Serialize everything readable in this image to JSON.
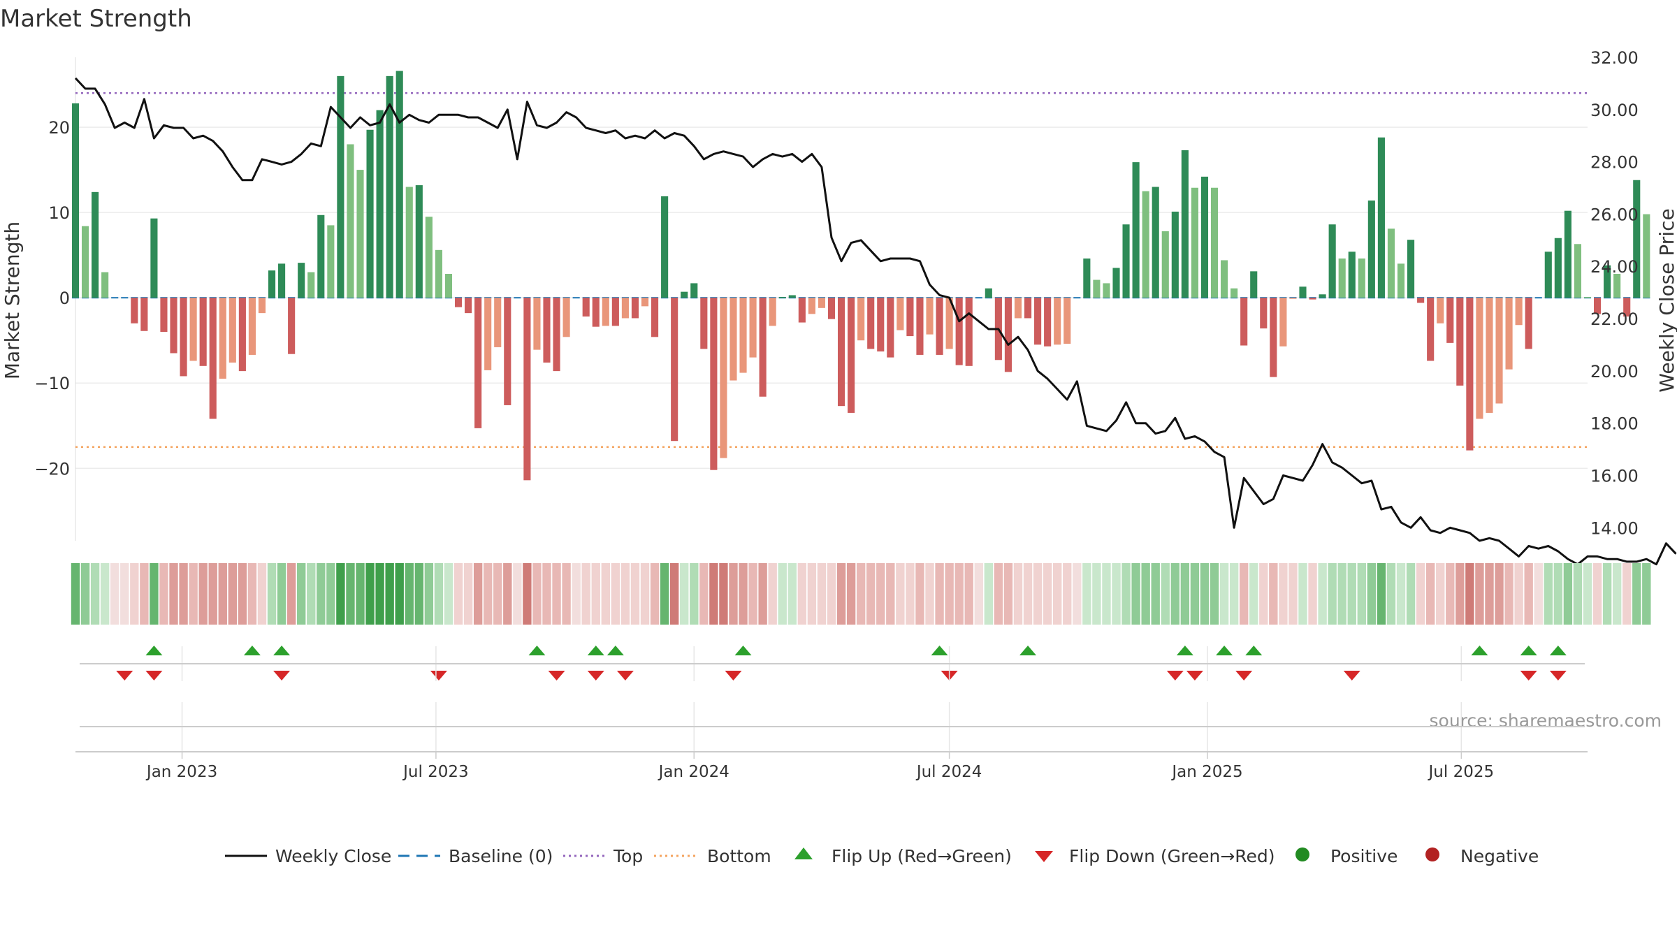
{
  "chart_data": {
    "type": "bar",
    "title": "Market Strength",
    "source": "source: sharemaestro.com",
    "ylabel": "Market Strength",
    "y2label": "Weekly Close Price",
    "ylim": [
      -28.5,
      28.2
    ],
    "y2lim": [
      13.5,
      32.0
    ],
    "yticks": [
      20,
      10,
      0,
      -10,
      -20
    ],
    "ytick_labels": [
      "20",
      "10",
      "0",
      "−10",
      "−20"
    ],
    "y2ticks": [
      32,
      30,
      28,
      26,
      24,
      22,
      20,
      18,
      16,
      14
    ],
    "y2tick_labels": [
      "32.00",
      "30.00",
      "28.00",
      "26.00",
      "24.00",
      "22.00",
      "20.00",
      "18.00",
      "16.00",
      "14.00"
    ],
    "xlim": [
      "2022-10-17",
      "2025-09-29"
    ],
    "xticks": [
      "2023-01-01",
      "2023-07-01",
      "2024-01-01",
      "2024-07-01",
      "2025-01-01",
      "2025-07-01"
    ],
    "xtick_labels": [
      "Jan 2023",
      "Jul 2023",
      "Jan 2024",
      "Jul 2024",
      "Jan 2025",
      "Jul 2025"
    ],
    "grid": true,
    "legend_position": "bottom",
    "reference_lines": {
      "baseline": 0,
      "top": 24.0,
      "bottom": -17.5
    },
    "colors": {
      "strong_positive": "#2e8b57",
      "weak_positive": "#7fbf7f",
      "strong_negative": "#cd5c5c",
      "weak_negative": "#e9967a",
      "price_line": "#111111",
      "top_line": "#9467bd",
      "bottom_line": "#f4a460",
      "baseline": "#1f77b4",
      "flip_up": "#2ca02c",
      "flip_down": "#d62728",
      "positive_marker": "#228b22",
      "negative_marker": "#b22222"
    },
    "legend": [
      {
        "label": "Weekly Close",
        "kind": "line"
      },
      {
        "label": "Baseline (0)",
        "kind": "dash"
      },
      {
        "label": "Top",
        "kind": "dot-purple"
      },
      {
        "label": "Bottom",
        "kind": "dot-orange"
      },
      {
        "label": "Flip Up (Red→Green)",
        "kind": "tri-up"
      },
      {
        "label": "Flip Down (Green→Red)",
        "kind": "tri-down"
      },
      {
        "label": "Positive",
        "kind": "dot-green"
      },
      {
        "label": "Negative",
        "kind": "dot-red"
      }
    ],
    "start_date": "2022-10-17",
    "bar_values": [
      22.8,
      8.4,
      12.4,
      3.0,
      0,
      0,
      -3.0,
      -3.9,
      9.3,
      -4.0,
      -6.5,
      -9.2,
      -7.4,
      -8.0,
      -14.2,
      -9.5,
      -7.6,
      -8.6,
      -6.7,
      -1.8,
      3.2,
      4.0,
      -6.6,
      4.1,
      3.0,
      9.7,
      8.5,
      26.0,
      18.0,
      15.0,
      19.7,
      22.0,
      26.0,
      26.6,
      13.0,
      13.2,
      9.5,
      5.6,
      2.8,
      -1.1,
      -1.8,
      -15.3,
      -8.5,
      -5.8,
      -12.6,
      0,
      -21.4,
      -6.1,
      -7.6,
      -8.6,
      -4.6,
      0,
      -2.2,
      -3.4,
      -3.3,
      -3.3,
      -2.4,
      -2.4,
      -1.0,
      -4.6,
      11.9,
      -16.8,
      0.7,
      1.7,
      -6.0,
      -20.2,
      -18.8,
      -9.7,
      -8.8,
      -7.0,
      -11.6,
      -3.3,
      0.1,
      0.3,
      -2.9,
      -1.9,
      -1.2,
      -2.5,
      -12.7,
      -13.5,
      -5.0,
      -6.0,
      -6.3,
      -7.0,
      -3.8,
      -4.5,
      -6.7,
      -4.3,
      -6.7,
      -6.0,
      -7.9,
      -8.0,
      0,
      1.1,
      -7.3,
      -8.7,
      -2.4,
      -2.4,
      -5.5,
      -5.7,
      -5.5,
      -5.4,
      0,
      4.6,
      2.1,
      1.7,
      3.5,
      8.6,
      15.9,
      12.5,
      13.0,
      7.8,
      10.1,
      17.3,
      12.9,
      14.2,
      12.9,
      4.4,
      1.1,
      -5.6,
      3.1,
      -3.6,
      -9.3,
      -5.7,
      -0.1,
      1.3,
      -0.2,
      0.4,
      8.6,
      4.6,
      5.4,
      4.6,
      11.4,
      18.8,
      8.1,
      4.0,
      6.8,
      -0.6,
      -7.4,
      -3.0,
      -5.3,
      -10.3,
      -17.9,
      -14.2,
      -13.5,
      -12.4,
      -8.4,
      -3.2,
      -6.0,
      0,
      5.4,
      7.0,
      10.2,
      6.3,
      0.1,
      -1.9,
      3.8,
      2.8,
      -2.2,
      13.8,
      9.8
    ],
    "close_values": [
      31.2,
      30.8,
      30.8,
      30.2,
      29.3,
      29.5,
      29.3,
      30.4,
      28.9,
      29.4,
      29.3,
      29.3,
      28.9,
      29.0,
      28.8,
      28.4,
      27.8,
      27.3,
      27.3,
      28.1,
      28.0,
      27.9,
      28.0,
      28.3,
      28.7,
      28.6,
      30.1,
      29.7,
      29.3,
      29.7,
      29.4,
      29.5,
      30.2,
      29.5,
      29.8,
      29.6,
      29.5,
      29.8,
      29.8,
      29.8,
      29.7,
      29.7,
      29.5,
      29.3,
      30.0,
      28.1,
      30.3,
      29.4,
      29.3,
      29.5,
      29.9,
      29.7,
      29.3,
      29.2,
      29.1,
      29.2,
      28.9,
      29.0,
      28.9,
      29.2,
      28.9,
      29.1,
      29.0,
      28.6,
      28.1,
      28.3,
      28.4,
      28.3,
      28.2,
      27.8,
      28.1,
      28.3,
      28.2,
      28.3,
      28.0,
      28.3,
      27.8,
      25.1,
      24.2,
      24.9,
      25.0,
      24.6,
      24.2,
      24.3,
      24.3,
      24.3,
      24.2,
      23.3,
      22.9,
      22.8,
      21.9,
      22.2,
      21.9,
      21.6,
      21.6,
      21.0,
      21.3,
      20.8,
      20.0,
      19.7,
      19.3,
      18.9,
      19.6,
      17.9,
      17.8,
      17.7,
      18.1,
      18.8,
      18.0,
      18.0,
      17.6,
      17.7,
      18.2,
      17.4,
      17.5,
      17.3,
      16.9,
      16.7,
      14.0,
      15.9,
      15.4,
      14.9,
      15.1,
      16.0,
      15.9,
      15.8,
      16.4,
      17.2,
      16.5,
      16.3,
      16.0,
      15.7,
      15.8,
      14.7,
      14.8,
      14.2,
      14.0,
      14.4,
      13.9,
      13.8,
      14.0,
      13.9,
      13.8,
      13.5,
      13.6,
      13.5,
      13.2,
      12.9,
      13.3,
      13.2,
      13.3,
      13.1,
      12.8,
      12.6,
      12.9,
      12.9,
      12.8,
      12.8,
      12.7,
      12.7,
      12.8,
      12.6,
      13.4,
      13.0
    ],
    "heat_shades": [
      4,
      3,
      2,
      1,
      1,
      1,
      1,
      2,
      4,
      2,
      3,
      3,
      2,
      3,
      3,
      3,
      3,
      3,
      2,
      1,
      2,
      3,
      3,
      3,
      2,
      3,
      3,
      5,
      4,
      4,
      5,
      5,
      5,
      5,
      4,
      4,
      3,
      2,
      1,
      1,
      1,
      3,
      2,
      2,
      3,
      1,
      4,
      2,
      2,
      2,
      2,
      1,
      1,
      1,
      1,
      1,
      1,
      1,
      1,
      2,
      4,
      4,
      1,
      2,
      2,
      4,
      4,
      3,
      3,
      2,
      3,
      1,
      1,
      1,
      1,
      1,
      1,
      1,
      3,
      3,
      2,
      2,
      2,
      2,
      1,
      1,
      2,
      1,
      2,
      2,
      2,
      2,
      1,
      1,
      2,
      2,
      1,
      1,
      1,
      1,
      1,
      1,
      1,
      1,
      1,
      1,
      1,
      2,
      3,
      3,
      3,
      2,
      3,
      3,
      3,
      3,
      3,
      1,
      1,
      2,
      1,
      1,
      2,
      1,
      1,
      1,
      1,
      1,
      2,
      2,
      2,
      2,
      3,
      4,
      2,
      1,
      2,
      1,
      2,
      1,
      2,
      3,
      4,
      3,
      3,
      3,
      2,
      1,
      2,
      1,
      2,
      2,
      3,
      2,
      1,
      1,
      2,
      1,
      1,
      3,
      3
    ],
    "flip_up_dates": [
      "2022-12-12",
      "2023-02-20",
      "2023-03-13",
      "2023-09-11",
      "2023-10-23",
      "2023-11-06",
      "2024-02-05",
      "2024-06-24",
      "2024-08-26",
      "2024-12-16",
      "2025-01-13",
      "2025-02-03",
      "2025-07-14",
      "2025-08-18",
      "2025-09-08"
    ],
    "flip_down_dates": [
      "2022-11-21",
      "2022-12-12",
      "2023-03-13",
      "2023-07-03",
      "2023-09-25",
      "2023-10-23",
      "2023-11-13",
      "2024-01-29",
      "2024-07-01",
      "2024-12-09",
      "2024-12-23",
      "2025-01-27",
      "2025-04-14",
      "2025-08-18",
      "2025-09-08"
    ]
  }
}
